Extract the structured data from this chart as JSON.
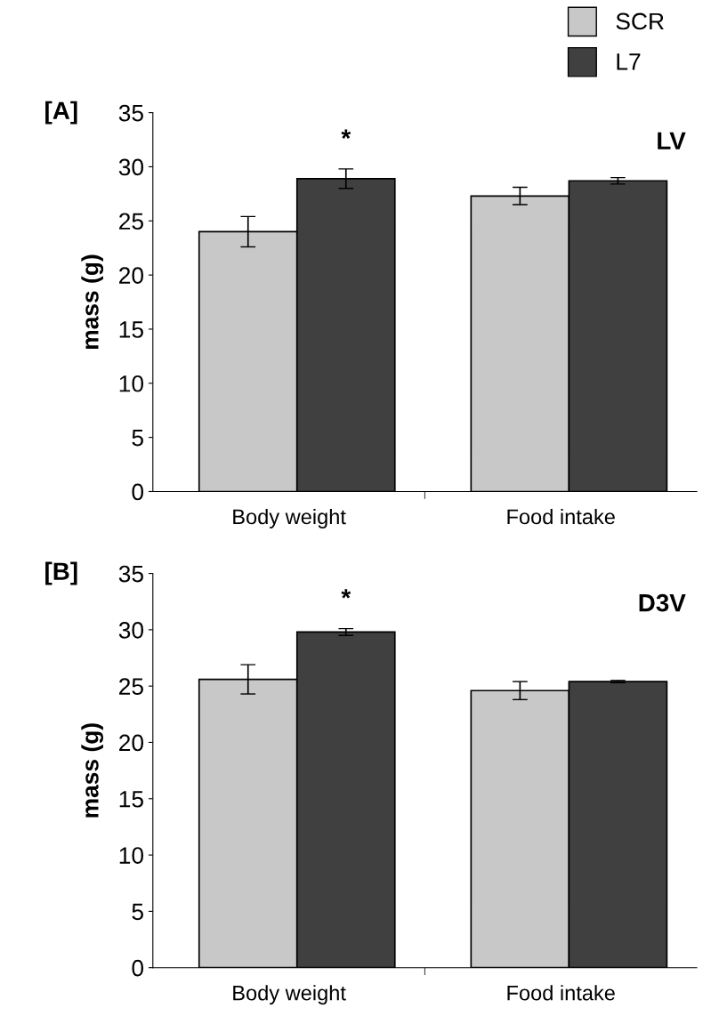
{
  "chart_data": [
    {
      "type": "bar",
      "ylabel": "mass (g)",
      "categories": [
        "Body weight",
        "Food intake"
      ],
      "ylim": [
        0,
        35
      ],
      "yticks": [
        0,
        5,
        10,
        15,
        20,
        25,
        30,
        35
      ],
      "legend": "top right",
      "grid": false,
      "series": [
        {
          "name": "SCR",
          "color": "#c8c8c8",
          "values": [
            24.0,
            27.3
          ],
          "errors": [
            1.4,
            0.8
          ]
        },
        {
          "name": "L7",
          "color": "#404040",
          "values": [
            28.9,
            28.7
          ],
          "errors": [
            0.9,
            0.3
          ]
        }
      ],
      "annotations": [
        "[A]",
        "LV",
        "*"
      ]
    },
    {
      "type": "bar",
      "ylabel": "mass (g)",
      "categories": [
        "Body weight",
        "Food intake"
      ],
      "ylim": [
        0,
        35
      ],
      "yticks": [
        0,
        5,
        10,
        15,
        20,
        25,
        30,
        35
      ],
      "grid": false,
      "series": [
        {
          "color": "#c8c8c8",
          "values": [
            25.6,
            24.6
          ],
          "errors": [
            1.3,
            0.8
          ]
        },
        {
          "color": "#404040",
          "values": [
            29.8,
            25.4
          ],
          "errors": [
            0.3,
            0.1
          ]
        }
      ],
      "annotations": [
        "[B]",
        "D3V",
        "*"
      ]
    }
  ]
}
